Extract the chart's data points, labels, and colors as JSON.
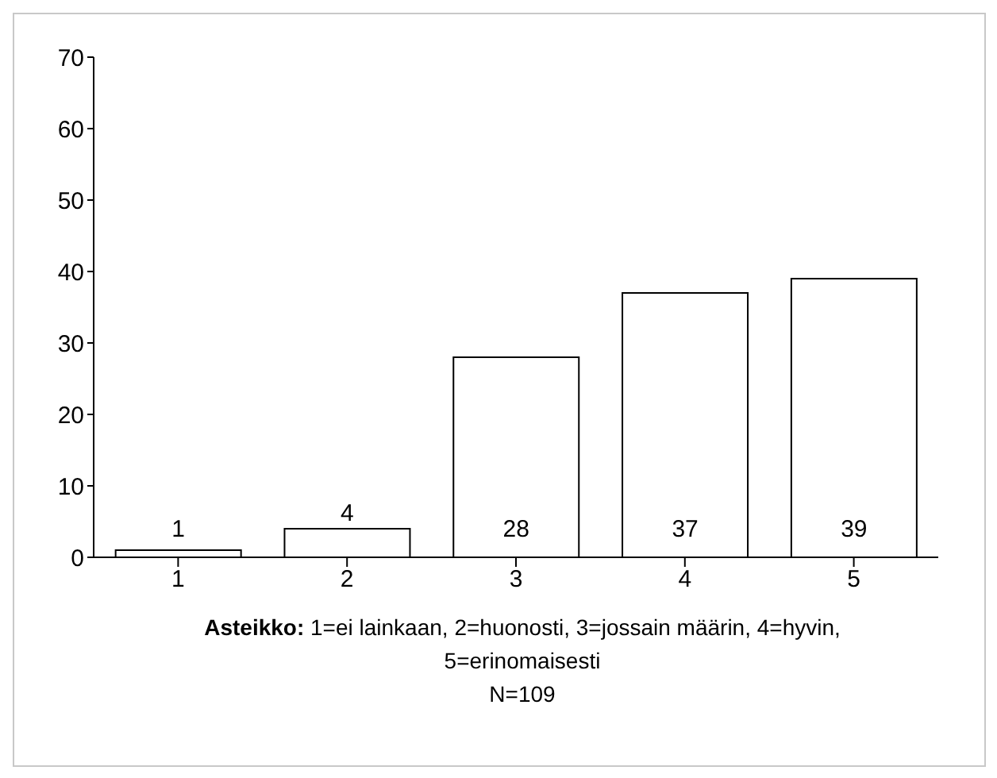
{
  "chart_data": {
    "type": "bar",
    "categories": [
      "1",
      "2",
      "3",
      "4",
      "5"
    ],
    "values": [
      1,
      4,
      28,
      37,
      39
    ],
    "color": "#ffffff",
    "ylim": [
      0,
      70
    ],
    "yticks": [
      0,
      10,
      20,
      30,
      40,
      50,
      60,
      70
    ],
    "grid": false,
    "legend": false,
    "data_labels": true,
    "xlabel": "Asteikko: 1=ei lainkaan, 2=huonosti, 3=jossain määrin, 4=hyvin, 5=erinomaisesti",
    "annotations": [
      "N=109"
    ]
  }
}
